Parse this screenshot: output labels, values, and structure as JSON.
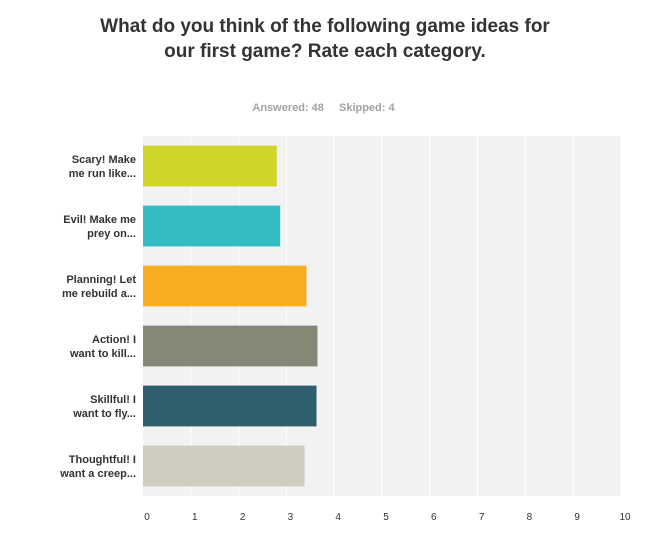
{
  "title": "What do you think of the following game ideas for our first game? Rate each category.",
  "answered": "Answered: 48",
  "skipped": "Skipped: 4",
  "chart_data": {
    "type": "bar",
    "orientation": "horizontal",
    "categories": [
      [
        "Scary! Make",
        "me run like..."
      ],
      [
        "Evil! Make me",
        "prey on..."
      ],
      [
        "Planning! Let",
        "me rebuild a..."
      ],
      [
        "Action! I",
        "want to kill..."
      ],
      [
        "Skillful! I",
        "want to fly..."
      ],
      [
        "Thoughtful! I",
        "want a creep..."
      ]
    ],
    "values": [
      2.8,
      2.87,
      3.42,
      3.65,
      3.63,
      3.38
    ],
    "colors": [
      "#cfd628",
      "#33bdc2",
      "#f8ad22",
      "#878776",
      "#2f5f6d",
      "#cfcdc0"
    ],
    "xlim": [
      0,
      10
    ],
    "xticks": [
      0,
      1,
      2,
      3,
      4,
      5,
      6,
      7,
      8,
      9,
      10
    ],
    "grid": true,
    "plot_background": "#f2f2f2",
    "grid_color": "#ffffff"
  }
}
